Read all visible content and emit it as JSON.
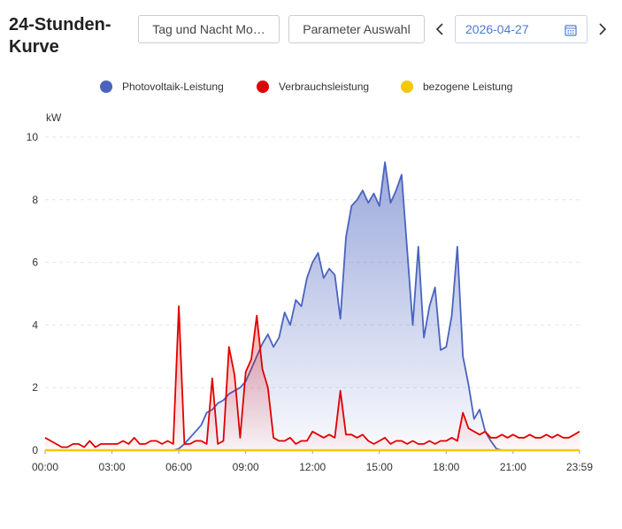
{
  "header": {
    "title": "24-Stunden-Kurve",
    "buttons": [
      "Tag und Nacht Mo…",
      "Parameter Auswahl"
    ],
    "date": "2026-04-27"
  },
  "chart_data": {
    "type": "area",
    "y_label": "kW",
    "x": [
      0,
      15,
      30,
      45,
      60,
      75,
      90,
      105,
      120,
      135,
      150,
      165,
      180,
      195,
      210,
      225,
      240,
      255,
      270,
      285,
      300,
      315,
      330,
      345,
      360,
      375,
      390,
      405,
      420,
      435,
      450,
      465,
      480,
      495,
      510,
      525,
      540,
      555,
      570,
      585,
      600,
      615,
      630,
      645,
      660,
      675,
      690,
      705,
      720,
      735,
      750,
      765,
      780,
      795,
      810,
      825,
      840,
      855,
      870,
      885,
      900,
      915,
      930,
      945,
      960,
      975,
      990,
      1005,
      1020,
      1035,
      1050,
      1065,
      1080,
      1095,
      1110,
      1125,
      1140,
      1155,
      1170,
      1185,
      1200,
      1215,
      1230,
      1245,
      1260,
      1275,
      1290,
      1305,
      1320,
      1335,
      1350,
      1365,
      1380,
      1395,
      1410,
      1425,
      1439
    ],
    "xlim": [
      0,
      1439
    ],
    "xticks": [
      {
        "value": 0,
        "label": "00:00"
      },
      {
        "value": 180,
        "label": "03:00"
      },
      {
        "value": 360,
        "label": "06:00"
      },
      {
        "value": 540,
        "label": "09:00"
      },
      {
        "value": 720,
        "label": "12:00"
      },
      {
        "value": 900,
        "label": "15:00"
      },
      {
        "value": 1080,
        "label": "18:00"
      },
      {
        "value": 1260,
        "label": "21:00"
      },
      {
        "value": 1439,
        "label": "23:59"
      }
    ],
    "ylim": [
      0,
      10
    ],
    "yticks": [
      0,
      2,
      4,
      6,
      8,
      10
    ],
    "grid": true,
    "series": [
      {
        "name": "Photovoltaik-Leistung",
        "color": "#4a63bf",
        "values": [
          0,
          0,
          0,
          0,
          0,
          0,
          0,
          0,
          0,
          0,
          0,
          0,
          0,
          0,
          0,
          0,
          0,
          0,
          0,
          0,
          0,
          0,
          0,
          0,
          0.05,
          0.2,
          0.4,
          0.6,
          0.8,
          1.2,
          1.3,
          1.5,
          1.6,
          1.8,
          1.9,
          2.0,
          2.2,
          2.6,
          3.0,
          3.4,
          3.7,
          3.3,
          3.6,
          4.4,
          4.0,
          4.8,
          4.6,
          5.5,
          6.0,
          6.3,
          5.5,
          5.8,
          5.6,
          4.2,
          6.8,
          7.8,
          8.0,
          8.3,
          7.9,
          8.2,
          7.8,
          9.2,
          7.9,
          8.3,
          8.8,
          6.4,
          4.0,
          6.5,
          3.6,
          4.6,
          5.2,
          3.2,
          3.3,
          4.3,
          6.5,
          3.0,
          2.1,
          1.0,
          1.3,
          0.6,
          0.3,
          0.05,
          0,
          0,
          0,
          0,
          0,
          0,
          0,
          0,
          0,
          0,
          0,
          0,
          0,
          0,
          0
        ]
      },
      {
        "name": "Verbrauchsleistung",
        "color": "#e00000",
        "values": [
          0.4,
          0.3,
          0.2,
          0.1,
          0.1,
          0.2,
          0.2,
          0.1,
          0.3,
          0.1,
          0.2,
          0.2,
          0.2,
          0.2,
          0.3,
          0.2,
          0.4,
          0.2,
          0.2,
          0.3,
          0.3,
          0.2,
          0.3,
          0.2,
          4.6,
          0.2,
          0.2,
          0.3,
          0.3,
          0.2,
          2.3,
          0.2,
          0.3,
          3.3,
          2.4,
          0.4,
          2.5,
          2.9,
          4.3,
          2.6,
          2.0,
          0.4,
          0.3,
          0.3,
          0.4,
          0.2,
          0.3,
          0.3,
          0.6,
          0.5,
          0.4,
          0.5,
          0.4,
          1.9,
          0.5,
          0.5,
          0.4,
          0.5,
          0.3,
          0.2,
          0.3,
          0.4,
          0.2,
          0.3,
          0.3,
          0.2,
          0.3,
          0.2,
          0.2,
          0.3,
          0.2,
          0.3,
          0.3,
          0.4,
          0.3,
          1.2,
          0.7,
          0.6,
          0.5,
          0.6,
          0.4,
          0.4,
          0.5,
          0.4,
          0.5,
          0.4,
          0.4,
          0.5,
          0.4,
          0.4,
          0.5,
          0.4,
          0.5,
          0.4,
          0.4,
          0.5,
          0.6
        ]
      },
      {
        "name": "bezogene Leistung",
        "color": "#f5c800",
        "values": [
          0,
          0,
          0,
          0,
          0,
          0,
          0,
          0,
          0,
          0,
          0,
          0,
          0,
          0,
          0,
          0,
          0,
          0,
          0,
          0,
          0,
          0,
          0,
          0,
          0,
          0,
          0,
          0,
          0,
          0,
          0,
          0,
          0,
          0,
          0,
          0,
          0,
          0,
          0,
          0,
          0,
          0,
          0,
          0,
          0,
          0,
          0,
          0,
          0,
          0,
          0,
          0,
          0,
          0,
          0,
          0,
          0,
          0,
          0,
          0,
          0,
          0,
          0,
          0,
          0,
          0,
          0,
          0,
          0,
          0,
          0,
          0,
          0,
          0,
          0,
          0,
          0,
          0,
          0,
          0,
          0,
          0,
          0,
          0,
          0,
          0,
          0,
          0,
          0,
          0,
          0,
          0,
          0,
          0,
          0,
          0,
          0
        ]
      }
    ]
  }
}
